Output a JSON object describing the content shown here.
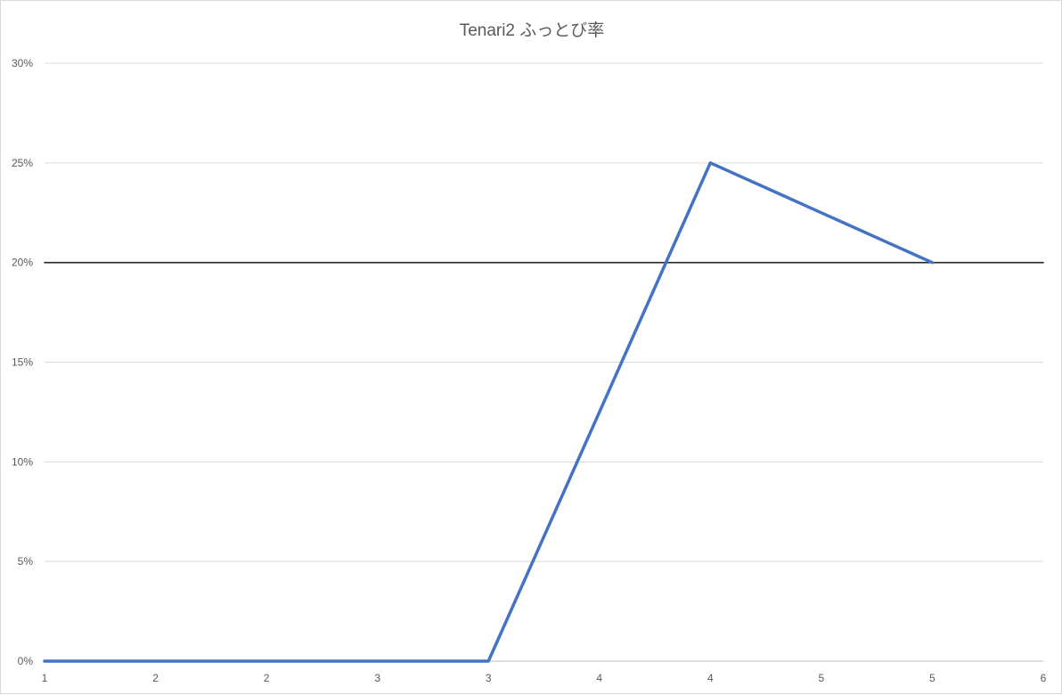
{
  "chart_data": {
    "type": "line",
    "title": "Tenari2 ふっとび率",
    "categories": [
      "1",
      "2",
      "2",
      "3",
      "3",
      "4",
      "4",
      "5",
      "5",
      "6"
    ],
    "y_tick_labels": [
      "0%",
      "5%",
      "10%",
      "15%",
      "20%",
      "25%",
      "30%"
    ],
    "ylim": [
      0,
      30
    ],
    "grid": true,
    "legend": "none",
    "series": [
      {
        "values": [
          0,
          0,
          0,
          0,
          0,
          12.5,
          25,
          22.5,
          20,
          null
        ],
        "color": "#4472C4"
      },
      {
        "values": [
          20,
          20,
          20,
          20,
          20,
          20,
          20,
          20,
          20,
          20
        ],
        "color": "#262626"
      }
    ]
  }
}
